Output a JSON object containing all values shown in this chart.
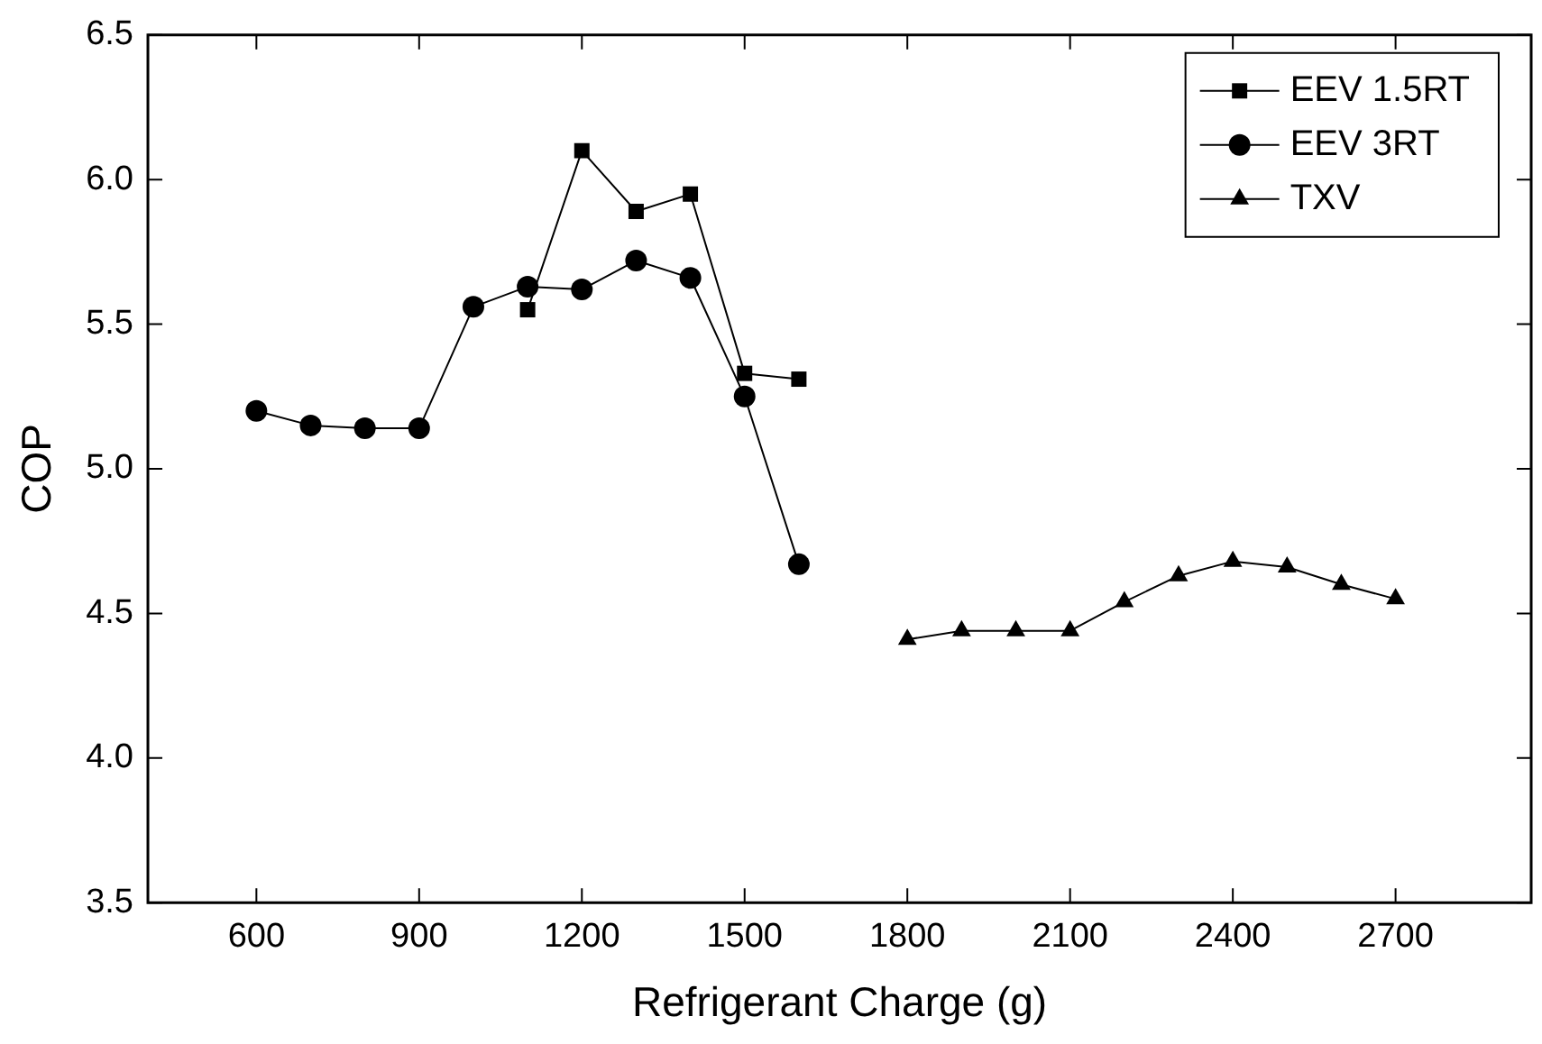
{
  "chart_data": {
    "type": "line",
    "xlabel": "Refrigerant Charge (g)",
    "ylabel": "COP",
    "xlim": [
      400,
      2950
    ],
    "xticks": [
      600,
      900,
      1200,
      1500,
      1800,
      2100,
      2400,
      2700
    ],
    "ylim": [
      3.5,
      6.5
    ],
    "yticks": [
      3.5,
      {
        "value": 4,
        "label": "4.0"
      },
      4.5,
      {
        "value": 5,
        "label": "5.0"
      },
      5.5,
      {
        "value": 6,
        "label": "6.0"
      },
      6.5
    ],
    "grid": false,
    "legend": "top right",
    "line_style": "solid",
    "series": [
      {
        "name": "EEV 1.5RT",
        "color": "#000000",
        "marker": "square",
        "x": [
          1100,
          1200,
          1300,
          1400,
          1500,
          1600
        ],
        "values": [
          5.55,
          6.1,
          5.89,
          5.95,
          5.33,
          5.31
        ]
      },
      {
        "name": "EEV 3RT",
        "color": "#000000",
        "marker": "circle",
        "x": [
          600,
          700,
          800,
          900,
          1000,
          1100,
          1200,
          1300,
          1400,
          1500,
          1600
        ],
        "values": [
          5.2,
          5.15,
          5.14,
          5.14,
          5.56,
          5.63,
          5.62,
          5.72,
          5.66,
          5.25,
          4.67
        ]
      },
      {
        "name": "TXV",
        "color": "#000000",
        "marker": "triangle",
        "x": [
          1800,
          1900,
          2000,
          2100,
          2200,
          2300,
          2400,
          2500,
          2600,
          2700
        ],
        "values": [
          4.41,
          4.44,
          4.44,
          4.44,
          4.54,
          4.63,
          4.68,
          4.66,
          4.6,
          4.55
        ]
      }
    ]
  }
}
